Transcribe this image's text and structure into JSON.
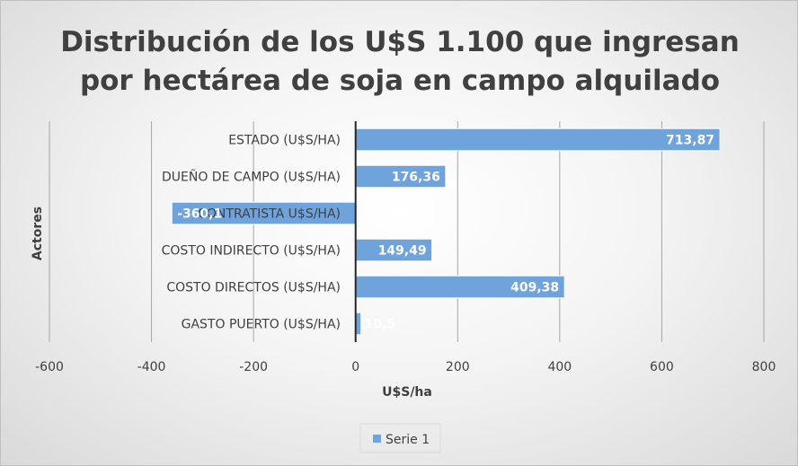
{
  "chart_data": {
    "type": "bar",
    "orientation": "horizontal",
    "title": "Distribución de los U$S 1.100 que ingresan por hectárea de soja en campo alquilado",
    "title_lines": [
      "Distribución de los U$S 1.100 que ingresan",
      "por hectárea de soja en campo alquilado"
    ],
    "xlabel": "U$S/ha",
    "ylabel": "Actores",
    "xlim": [
      -600,
      800
    ],
    "xticks": [
      -600,
      -400,
      -200,
      0,
      200,
      400,
      600,
      800
    ],
    "xtick_labels": [
      "-600",
      "-400",
      "-200",
      "0",
      "200",
      "400",
      "600",
      "800"
    ],
    "categories": [
      "ESTADO (U$S/HA)",
      "DUEÑO DE CAMPO (U$S/HA)",
      "CONTRATISTA U$S/HA)",
      "COSTO INDIRECTO (U$S/HA)",
      "COSTO DIRECTOS (U$S/HA)",
      "GASTO PUERTO (U$S/HA)"
    ],
    "series": [
      {
        "name": "Serie 1",
        "values": [
          713.87,
          176.36,
          -360.1,
          149.49,
          409.38,
          10.5
        ],
        "labels": [
          "713,87",
          "176,36",
          "-360,1",
          "149,49",
          "409,38",
          "10,5"
        ]
      }
    ],
    "grid": true,
    "legend_position": "bottom",
    "bar_color": "#6fa3dc"
  }
}
